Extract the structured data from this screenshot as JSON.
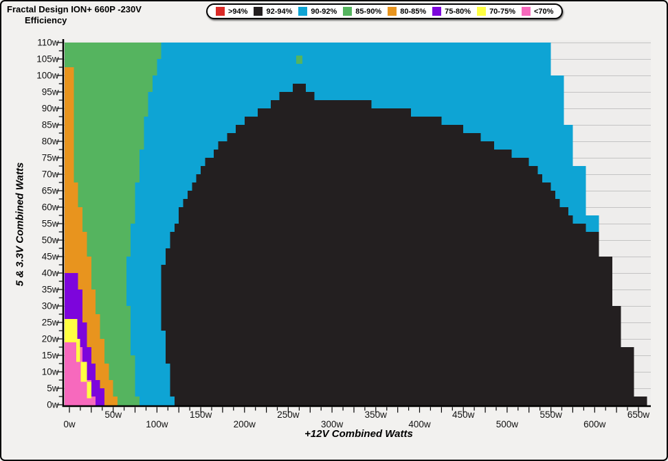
{
  "title": {
    "line1": "Fractal Design ION+ 660P -230V",
    "line2": "Efficiency"
  },
  "legend": {
    "items": [
      {
        "label": ">94%",
        "color": "#da2a27"
      },
      {
        "label": "92-94%",
        "color": "#231f20"
      },
      {
        "label": "90-92%",
        "color": "#0ea4d4"
      },
      {
        "label": "85-90%",
        "color": "#55b45f"
      },
      {
        "label": "80-85%",
        "color": "#e8941e"
      },
      {
        "label": "75-80%",
        "color": "#7d05dc"
      },
      {
        "label": "70-75%",
        "color": "#ffff42"
      },
      {
        "label": "<70%",
        "color": "#f769bd"
      }
    ]
  },
  "axes": {
    "x": {
      "title": "+12V Combined Watts",
      "min": 0,
      "max": 660,
      "unit": "w",
      "label_step": 50,
      "tick_minor": 12.5,
      "tick_major": 25,
      "labels": [
        "0w",
        "50w",
        "100w",
        "150w",
        "200w",
        "250w",
        "300w",
        "350w",
        "400w",
        "450w",
        "500w",
        "550w",
        "600w",
        "650w"
      ]
    },
    "y": {
      "title": "5 & 3.3V Combined Watts",
      "min": 0,
      "max": 110,
      "unit": "w",
      "label_step": 5,
      "tick_minor": 2.5,
      "tick_major": 5,
      "labels": [
        "0w",
        "5w",
        "10w",
        "15w",
        "20w",
        "25w",
        "30w",
        "35w",
        "40w",
        "45w",
        "50w",
        "55w",
        "60w",
        "65w",
        "70w",
        "75w",
        "80w",
        "85w",
        "90w",
        "95w",
        "100w",
        "105w",
        "110w"
      ]
    }
  },
  "colors": {
    "page_bg": "#f2f1ef",
    "plot_bg": "#eeedec",
    "gridline": "#c3c3c3",
    "axis": "#000000",
    "label_text": "#111111"
  },
  "chart_data": {
    "type": "heatmap",
    "title": "Fractal Design ION+ 660P -230V Efficiency",
    "xlabel": "+12V Combined Watts",
    "ylabel": "5 & 3.3V Combined Watts",
    "xlim": [
      0,
      660
    ],
    "ylim": [
      0,
      110
    ],
    "grid": "horizontal lines every 5w",
    "legend_position": "top",
    "step_x_watts": 5,
    "step_y_watts": 2.5,
    "bins": [
      ">94%",
      "92-94%",
      "90-92%",
      "85-90%",
      "80-85%",
      "75-80%",
      "70-75%",
      "<70%"
    ],
    "regions": [
      {
        "name": "90-92",
        "efficiency": "90-92%",
        "color": "#0ea4d4",
        "stepped": true,
        "points": [
          [
            0,
            110
          ],
          [
            549,
            110
          ],
          [
            549,
            101
          ],
          [
            563,
            101
          ],
          [
            563,
            86
          ],
          [
            576,
            86
          ],
          [
            576,
            73
          ],
          [
            591,
            73
          ],
          [
            591,
            57
          ],
          [
            605,
            57
          ],
          [
            605,
            53
          ],
          [
            604,
            53
          ],
          [
            604,
            45.5
          ],
          [
            619,
            45.5
          ],
          [
            619,
            29.5
          ],
          [
            632,
            29.5
          ],
          [
            632,
            17
          ],
          [
            647,
            17
          ],
          [
            647,
            2
          ],
          [
            662,
            2
          ],
          [
            662,
            0
          ],
          [
            0,
            0
          ]
        ]
      },
      {
        "name": "85-90",
        "efficiency": "85-90%",
        "color": "#55b45f",
        "stepped": true,
        "points": [
          [
            0,
            110
          ],
          [
            108,
            110
          ],
          [
            103,
            104
          ],
          [
            97,
            97
          ],
          [
            91,
            91
          ],
          [
            84,
            80
          ],
          [
            78,
            70
          ],
          [
            73,
            58
          ],
          [
            70,
            50
          ],
          [
            67,
            43
          ],
          [
            67,
            35
          ],
          [
            69,
            25
          ],
          [
            71,
            18
          ],
          [
            73,
            12
          ],
          [
            76,
            6
          ],
          [
            79,
            0
          ],
          [
            54,
            0
          ],
          [
            48,
            5
          ],
          [
            44,
            10
          ],
          [
            40,
            16
          ],
          [
            36,
            22
          ],
          [
            30,
            30
          ],
          [
            26,
            37
          ],
          [
            23,
            43
          ],
          [
            18,
            50
          ],
          [
            14,
            55
          ],
          [
            10,
            62
          ],
          [
            7,
            70
          ],
          [
            6,
            85
          ],
          [
            5,
            95
          ],
          [
            5,
            103
          ],
          [
            0,
            103
          ]
        ]
      },
      {
        "name": "80-85",
        "efficiency": "80-85%",
        "color": "#e8941e",
        "stepped": true,
        "points": [
          [
            0,
            103
          ],
          [
            5,
            103
          ],
          [
            5,
            95
          ],
          [
            6,
            85
          ],
          [
            7,
            70
          ],
          [
            10,
            62
          ],
          [
            14,
            55
          ],
          [
            18,
            50
          ],
          [
            23,
            43
          ],
          [
            26,
            37
          ],
          [
            30,
            30
          ],
          [
            36,
            22
          ],
          [
            40,
            16
          ],
          [
            44,
            10
          ],
          [
            48,
            5
          ],
          [
            54,
            0
          ],
          [
            40,
            0
          ],
          [
            34,
            4
          ],
          [
            30,
            8
          ],
          [
            26,
            13
          ],
          [
            22,
            18
          ],
          [
            19,
            23
          ],
          [
            16,
            28
          ],
          [
            14,
            32
          ],
          [
            12,
            36
          ],
          [
            11,
            38
          ],
          [
            0,
            40
          ]
        ]
      },
      {
        "name": "75-80",
        "efficiency": "75-80%",
        "color": "#7d05dc",
        "stepped": true,
        "points": [
          [
            0,
            40
          ],
          [
            11,
            38
          ],
          [
            12,
            36
          ],
          [
            14,
            32
          ],
          [
            16,
            28
          ],
          [
            19,
            23
          ],
          [
            22,
            18
          ],
          [
            26,
            13
          ],
          [
            30,
            8
          ],
          [
            34,
            4
          ],
          [
            40,
            0
          ],
          [
            28,
            0
          ],
          [
            24,
            4
          ],
          [
            20,
            8
          ],
          [
            17,
            11
          ],
          [
            14,
            14
          ],
          [
            11,
            17
          ],
          [
            8,
            19
          ],
          [
            0,
            21
          ]
        ]
      },
      {
        "name": "under-70",
        "efficiency": "<70%",
        "color": "#f769bd",
        "stepped": true,
        "points": [
          [
            0,
            21
          ],
          [
            8,
            19
          ],
          [
            11,
            17
          ],
          [
            14,
            14
          ],
          [
            17,
            11
          ],
          [
            20,
            8
          ],
          [
            24,
            4
          ],
          [
            28,
            0
          ],
          [
            0,
            0
          ]
        ]
      },
      {
        "name": "70-75_patch_1",
        "efficiency": "70-75%",
        "color": "#ffff42",
        "stepped": false,
        "points": [
          [
            0,
            19
          ],
          [
            9,
            19
          ],
          [
            9,
            26
          ],
          [
            0,
            26
          ]
        ]
      },
      {
        "name": "70-75_patch_2",
        "efficiency": "70-75%",
        "color": "#ffff42",
        "stepped": false,
        "points": [
          [
            8,
            13
          ],
          [
            12,
            13
          ],
          [
            12,
            20
          ],
          [
            8,
            20
          ]
        ]
      },
      {
        "name": "70-75_patch_3",
        "efficiency": "70-75%",
        "color": "#ffff42",
        "stepped": false,
        "points": [
          [
            13,
            7
          ],
          [
            20,
            7
          ],
          [
            20,
            13
          ],
          [
            13,
            13
          ]
        ]
      },
      {
        "name": "70-75_patch_4",
        "efficiency": "70-75%",
        "color": "#ffff42",
        "stepped": false,
        "points": [
          [
            20,
            2
          ],
          [
            25,
            2
          ],
          [
            25,
            7
          ],
          [
            20,
            7
          ]
        ]
      },
      {
        "name": "92-94",
        "efficiency": "92-94%",
        "color": "#231f20",
        "stepped": true,
        "points": [
          [
            122,
            0
          ],
          [
            117,
            5
          ],
          [
            113,
            10
          ],
          [
            110,
            15
          ],
          [
            108,
            20
          ],
          [
            107,
            25
          ],
          [
            106,
            30
          ],
          [
            106,
            35
          ],
          [
            107,
            41
          ],
          [
            109,
            44
          ],
          [
            112,
            47
          ],
          [
            115,
            51
          ],
          [
            117,
            53.5
          ],
          [
            121,
            56
          ],
          [
            125,
            59
          ],
          [
            130,
            62
          ],
          [
            134,
            65
          ],
          [
            140,
            67
          ],
          [
            146,
            70
          ],
          [
            151,
            72
          ],
          [
            158,
            75
          ],
          [
            165,
            77.5
          ],
          [
            172,
            80
          ],
          [
            180,
            82
          ],
          [
            190,
            84.5
          ],
          [
            200,
            86.5
          ],
          [
            210,
            88.5
          ],
          [
            222,
            90.5
          ],
          [
            232,
            92
          ],
          [
            243,
            94.5
          ],
          [
            250,
            96
          ],
          [
            254,
            97.5
          ],
          [
            258,
            98
          ],
          [
            266,
            98.5
          ],
          [
            269,
            97
          ],
          [
            271,
            94.5
          ],
          [
            276,
            94
          ],
          [
            281,
            93
          ],
          [
            288,
            92.5
          ],
          [
            298,
            92.5
          ],
          [
            304,
            93
          ],
          [
            314,
            93
          ],
          [
            320,
            92
          ],
          [
            332,
            91.5
          ],
          [
            345,
            91
          ],
          [
            364,
            90
          ],
          [
            376,
            89.5
          ],
          [
            388,
            88.5
          ],
          [
            404,
            87.5
          ],
          [
            415,
            86.5
          ],
          [
            425,
            85.5
          ],
          [
            434,
            85
          ],
          [
            443,
            84
          ],
          [
            451,
            83
          ],
          [
            458,
            82
          ],
          [
            468,
            81
          ],
          [
            477,
            80
          ],
          [
            486,
            78.5
          ],
          [
            495,
            77
          ],
          [
            503,
            76
          ],
          [
            511,
            75
          ],
          [
            519,
            74
          ],
          [
            527,
            72.5
          ],
          [
            535,
            70.5
          ],
          [
            542,
            68
          ],
          [
            546,
            66.5
          ],
          [
            550,
            65
          ],
          [
            554,
            63.5
          ],
          [
            558,
            62
          ],
          [
            562,
            60.5
          ],
          [
            566,
            59
          ],
          [
            571,
            57.5
          ],
          [
            575,
            56
          ],
          [
            579,
            55
          ],
          [
            583,
            54
          ],
          [
            588,
            53.5
          ],
          [
            592,
            53
          ],
          [
            604,
            53
          ],
          [
            604,
            45.5
          ],
          [
            619,
            45.5
          ],
          [
            619,
            29.5
          ],
          [
            632,
            29.5
          ],
          [
            632,
            17
          ],
          [
            647,
            17
          ],
          [
            647,
            2
          ],
          [
            662,
            2
          ],
          [
            662,
            0
          ]
        ]
      },
      {
        "name": "85-90_outlier_cell",
        "efficiency": "85-90%",
        "color": "#55b45f",
        "stepped": false,
        "points": [
          [
            259,
            103.5
          ],
          [
            266,
            103.5
          ],
          [
            266,
            106
          ],
          [
            259,
            106
          ]
        ]
      }
    ]
  }
}
